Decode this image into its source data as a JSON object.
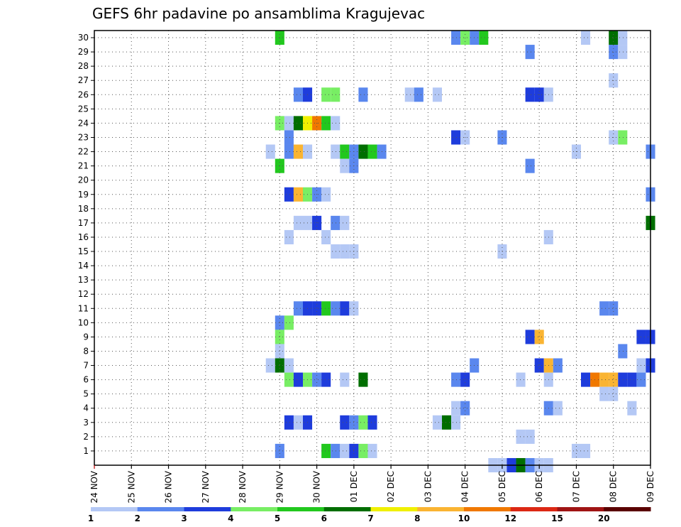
{
  "chart_data": {
    "type": "heatmap",
    "title": "GEFS 6hr padavine po ansamblima Kragujevac",
    "xlabel": "",
    "ylabel": "",
    "x_tick_labels": [
      "24 NOV",
      "25 NOV",
      "26 NOV",
      "27 NOV",
      "28 NOV",
      "29 NOV",
      "30 NOV",
      "01 DEC",
      "02 DEC",
      "03 DEC",
      "04 DEC",
      "05 DEC",
      "06 DEC",
      "07 DEC",
      "08 DEC",
      "09 DEC"
    ],
    "y_tick_labels": [
      "1",
      "2",
      "3",
      "4",
      "5",
      "6",
      "7",
      "8",
      "9",
      "10",
      "11",
      "12",
      "13",
      "14",
      "15",
      "16",
      "17",
      "18",
      "19",
      "20",
      "21",
      "22",
      "23",
      "24",
      "25",
      "26",
      "27",
      "28",
      "29",
      "30"
    ],
    "xlim": [
      0,
      60
    ],
    "ylim": [
      0,
      30.5
    ],
    "grid": true,
    "colorbar": {
      "labels": [
        "1",
        "2",
        "3",
        "4",
        "5",
        "6",
        "7",
        "8",
        "10",
        "12",
        "15",
        "20"
      ],
      "colors": [
        "#b4c8f5",
        "#5a87ee",
        "#1e3cdc",
        "#78ee64",
        "#22c81e",
        "#006e00",
        "#f0f000",
        "#fab432",
        "#f07800",
        "#dc2814",
        "#a01414",
        "#5a0000"
      ]
    },
    "cells_note": "each cell: [time_step (0=24 NOV 00z, 6h steps), member, color_index]",
    "cells": [
      [
        20,
        30,
        4
      ],
      [
        39,
        30,
        1
      ],
      [
        40,
        30,
        3
      ],
      [
        41,
        30,
        1
      ],
      [
        42,
        30,
        4
      ],
      [
        53,
        30,
        0
      ],
      [
        56,
        30,
        5
      ],
      [
        57,
        30,
        0
      ],
      [
        47,
        29,
        1
      ],
      [
        56,
        29,
        1
      ],
      [
        57,
        29,
        0
      ],
      [
        56,
        27,
        0
      ],
      [
        29,
        26,
        1
      ],
      [
        22,
        26,
        1
      ],
      [
        23,
        26,
        2
      ],
      [
        25,
        26,
        3
      ],
      [
        26,
        26,
        3
      ],
      [
        34,
        26,
        0
      ],
      [
        35,
        26,
        1
      ],
      [
        37,
        26,
        0
      ],
      [
        47,
        26,
        2
      ],
      [
        48,
        26,
        2
      ],
      [
        49,
        26,
        0
      ],
      [
        20,
        24,
        3
      ],
      [
        21,
        24,
        0
      ],
      [
        22,
        24,
        5
      ],
      [
        23,
        24,
        6
      ],
      [
        24,
        24,
        8
      ],
      [
        25,
        24,
        4
      ],
      [
        26,
        24,
        0
      ],
      [
        21,
        23,
        1
      ],
      [
        39,
        23,
        2
      ],
      [
        40,
        23,
        0
      ],
      [
        44,
        23,
        1
      ],
      [
        56,
        23,
        0
      ],
      [
        57,
        23,
        3
      ],
      [
        19,
        22,
        0
      ],
      [
        21,
        22,
        1
      ],
      [
        22,
        22,
        7
      ],
      [
        23,
        22,
        0
      ],
      [
        26,
        22,
        0
      ],
      [
        27,
        22,
        4
      ],
      [
        28,
        22,
        1
      ],
      [
        29,
        22,
        5
      ],
      [
        30,
        22,
        4
      ],
      [
        31,
        22,
        1
      ],
      [
        52,
        22,
        0
      ],
      [
        60,
        22,
        1
      ],
      [
        20,
        21,
        4
      ],
      [
        27,
        21,
        0
      ],
      [
        28,
        21,
        1
      ],
      [
        47,
        21,
        1
      ],
      [
        21,
        19,
        2
      ],
      [
        22,
        19,
        7
      ],
      [
        23,
        19,
        3
      ],
      [
        24,
        19,
        1
      ],
      [
        25,
        19,
        0
      ],
      [
        60,
        19,
        1
      ],
      [
        22,
        17,
        0
      ],
      [
        23,
        17,
        0
      ],
      [
        24,
        17,
        2
      ],
      [
        26,
        17,
        1
      ],
      [
        27,
        17,
        0
      ],
      [
        60,
        17,
        5
      ],
      [
        21,
        16,
        0
      ],
      [
        25,
        16,
        0
      ],
      [
        49,
        16,
        0
      ],
      [
        26,
        15,
        0
      ],
      [
        27,
        15,
        0
      ],
      [
        28,
        15,
        0
      ],
      [
        44,
        15,
        0
      ],
      [
        22,
        11,
        1
      ],
      [
        23,
        11,
        2
      ],
      [
        24,
        11,
        2
      ],
      [
        25,
        11,
        4
      ],
      [
        26,
        11,
        1
      ],
      [
        27,
        11,
        2
      ],
      [
        28,
        11,
        0
      ],
      [
        55,
        11,
        1
      ],
      [
        56,
        11,
        1
      ],
      [
        20,
        10,
        1
      ],
      [
        21,
        10,
        3
      ],
      [
        20,
        9,
        3
      ],
      [
        47,
        9,
        2
      ],
      [
        48,
        9,
        7
      ],
      [
        59,
        9,
        2
      ],
      [
        60,
        9,
        2
      ],
      [
        20,
        8,
        0
      ],
      [
        57,
        8,
        1
      ],
      [
        19,
        7,
        0
      ],
      [
        20,
        7,
        5
      ],
      [
        21,
        7,
        0
      ],
      [
        41,
        7,
        1
      ],
      [
        48,
        7,
        2
      ],
      [
        49,
        7,
        7
      ],
      [
        50,
        7,
        1
      ],
      [
        59,
        7,
        0
      ],
      [
        60,
        7,
        2
      ],
      [
        21,
        6,
        3
      ],
      [
        22,
        6,
        2
      ],
      [
        23,
        6,
        3
      ],
      [
        24,
        6,
        1
      ],
      [
        25,
        6,
        2
      ],
      [
        27,
        6,
        0
      ],
      [
        29,
        6,
        5
      ],
      [
        39,
        6,
        1
      ],
      [
        40,
        6,
        2
      ],
      [
        46,
        6,
        0
      ],
      [
        49,
        6,
        0
      ],
      [
        53,
        6,
        2
      ],
      [
        54,
        6,
        8
      ],
      [
        55,
        6,
        7
      ],
      [
        56,
        6,
        7
      ],
      [
        57,
        6,
        2
      ],
      [
        58,
        6,
        2
      ],
      [
        59,
        6,
        1
      ],
      [
        55,
        5,
        0
      ],
      [
        56,
        5,
        0
      ],
      [
        39,
        4,
        0
      ],
      [
        40,
        4,
        1
      ],
      [
        49,
        4,
        1
      ],
      [
        50,
        4,
        0
      ],
      [
        58,
        4,
        0
      ],
      [
        21,
        3,
        2
      ],
      [
        22,
        3,
        0
      ],
      [
        23,
        3,
        2
      ],
      [
        27,
        3,
        2
      ],
      [
        28,
        3,
        1
      ],
      [
        29,
        3,
        3
      ],
      [
        30,
        3,
        2
      ],
      [
        37,
        3,
        0
      ],
      [
        38,
        3,
        5
      ],
      [
        39,
        3,
        0
      ],
      [
        46,
        2,
        0
      ],
      [
        47,
        2,
        0
      ],
      [
        20,
        1,
        1
      ],
      [
        25,
        1,
        4
      ],
      [
        26,
        1,
        1
      ],
      [
        27,
        1,
        0
      ],
      [
        28,
        1,
        2
      ],
      [
        29,
        1,
        3
      ],
      [
        30,
        1,
        0
      ],
      [
        52,
        1,
        0
      ],
      [
        53,
        1,
        0
      ],
      [
        43,
        0,
        0
      ],
      [
        44,
        0,
        0
      ],
      [
        45,
        0,
        2
      ],
      [
        46,
        0,
        5
      ],
      [
        47,
        0,
        1
      ],
      [
        48,
        0,
        0
      ],
      [
        49,
        0,
        0
      ]
    ]
  }
}
